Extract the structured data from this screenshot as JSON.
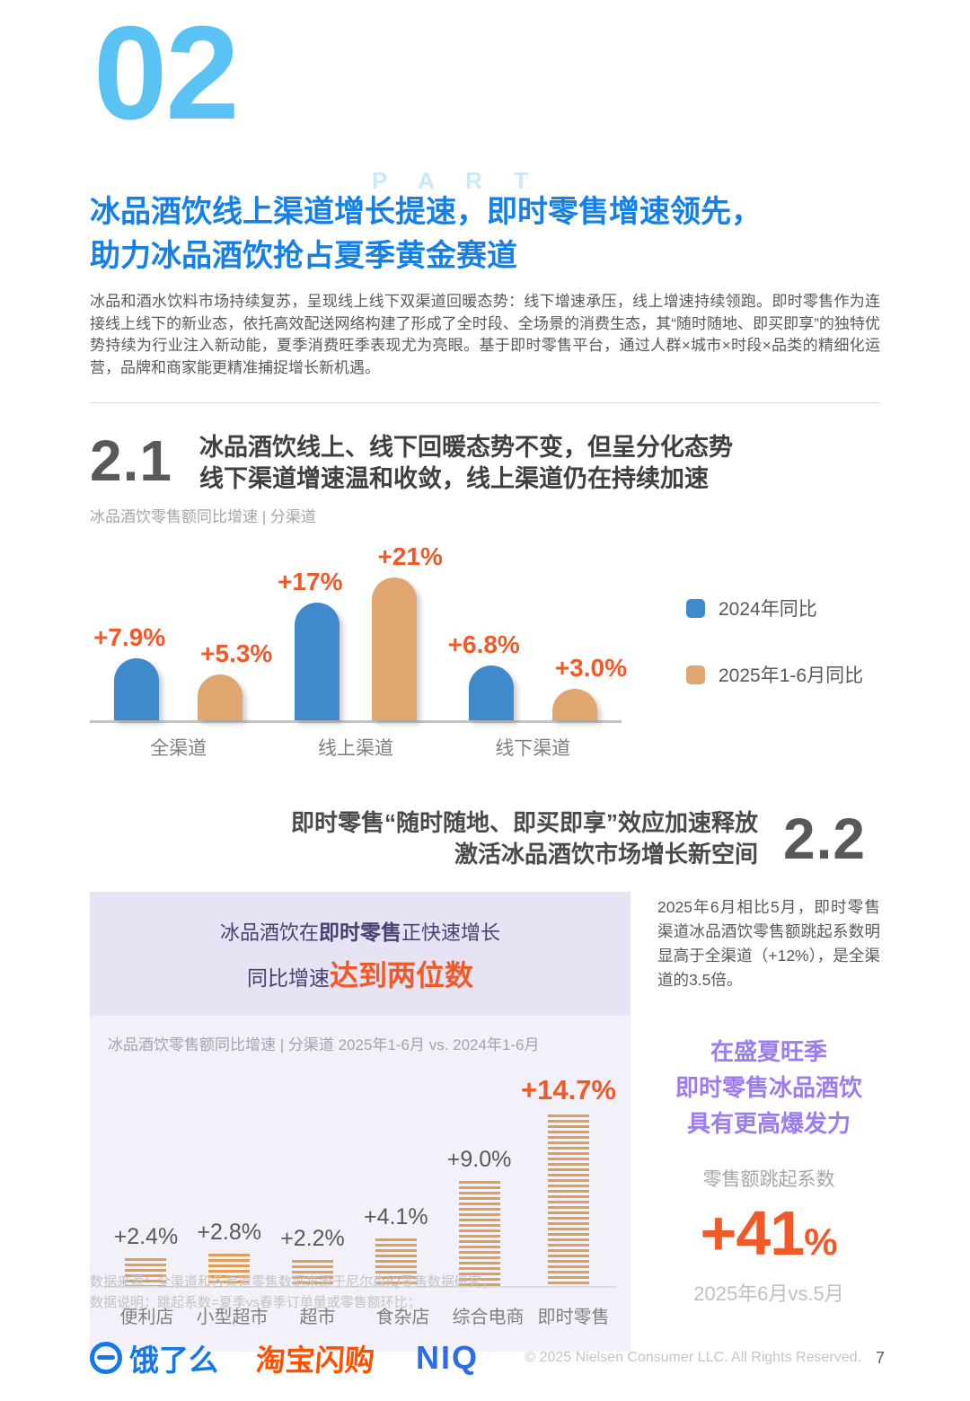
{
  "header": {
    "part_number": "02",
    "part_label": "P A R T",
    "title_line1": "冰品酒饮线上渠道增长提速，即时零售增速领先，",
    "title_line2": "助力冰品酒饮抢占夏季黄金赛道",
    "intro": "冰品和酒水饮料市场持续复苏，呈现线上线下双渠道回暖态势：线下增速承压，线上增速持续领跑。即时零售作为连接线上线下的新业态，依托高效配送网络构建了形成了全时段、全场景的消费生态，其“随时随地、即买即享”的独特优势持续为行业注入新动能，夏季消费旺季表现尤为亮眼。基于即时零售平台，通过人群×城市×时段×品类的精细化运营，品牌和商家能更精准捕捉增长新机遇。"
  },
  "section21": {
    "number": "2.1",
    "heading_line1": "冰品酒饮线上、线下回暖态势不变，但呈分化态势",
    "heading_line2": "线下渠道增速温和收敛，线上渠道仍在持续加速",
    "caption": "冰品酒饮零售额同比增速 | 分渠道"
  },
  "section22": {
    "number": "2.2",
    "heading_line1": "即时零售“随时随地、即买即享”效应加速释放",
    "heading_line2": "激活冰品酒饮市场增长新空间",
    "panel": {
      "title_pre": "冰品酒饮在",
      "title_bold": "即时零售",
      "title_post": "正快速增长",
      "title2_pre": "同比增速",
      "title2_highlight": "达到两位数",
      "caption": "冰品酒饮零售额同比增速 | 分渠道 2025年1-6月 vs. 2024年1-6月"
    },
    "right": {
      "paragraph": "2025年6月相比5月，即时零售渠道冰品酒饮零售额跳起系数明显高于全渠道（+12%），是全渠道的3.5倍。",
      "highlight_line1": "在盛夏旺季",
      "highlight_line2": "即时零售冰品酒饮",
      "highlight_line3": "具有更高爆发力",
      "metric_label": "零售额跳起系数",
      "metric_value": "+41",
      "metric_unit": "%",
      "metric_period": "2025年6月vs.5月"
    }
  },
  "chart_data": [
    {
      "type": "bar",
      "title": "冰品酒饮零售额同比增速 | 分渠道",
      "categories": [
        "全渠道",
        "线上渠道",
        "线下渠道"
      ],
      "series": [
        {
          "name": "2024年同比",
          "color": "#4189CD",
          "values": [
            7.9,
            17,
            6.8
          ],
          "labels": [
            "+7.9%",
            "+17%",
            "+6.8%"
          ]
        },
        {
          "name": "2025年1-6月同比",
          "color": "#DFA670",
          "values": [
            5.3,
            21,
            3.0
          ],
          "labels": [
            "+5.3%",
            "+21%",
            "+3.0%"
          ]
        }
      ],
      "ylim": [
        0,
        24
      ],
      "grid": false,
      "legend_position": "right",
      "label_color": "#F05A28"
    },
    {
      "type": "bar",
      "title": "冰品酒饮零售额同比增速 | 分渠道 2025年1-6月 vs. 2024年1-6月",
      "categories": [
        "便利店",
        "小型超市",
        "超市",
        "食杂店",
        "综合电商",
        "即时零售"
      ],
      "values": [
        2.4,
        2.8,
        2.2,
        4.1,
        9.0,
        14.7
      ],
      "labels": [
        "+2.4%",
        "+2.8%",
        "+2.2%",
        "+4.1%",
        "+9.0%",
        "+14.7%"
      ],
      "highlight_index": 5,
      "bar_style": "striped",
      "color": "#DE9E53",
      "ylim": [
        0,
        16
      ],
      "grid": false
    }
  ],
  "colors": {
    "title_blue": "#1580E8",
    "part_blue": "#5BC3F3",
    "part_label_blue": "#C9E9FB",
    "accent_orange": "#F05A28",
    "bar_blue": "#4189CD",
    "bar_tan": "#DFA670",
    "purple": "#9C7CEE",
    "panel_lavender": "#E6E3F4",
    "panel_bg": "#F2F1F9"
  },
  "footer": {
    "source_line1": "数据来源：全渠道和各渠道零售数据来源于尼尔森IQ零售数据研究；",
    "source_line2": "数据说明：跳起系数=夏季vs春季订单量或零售额环比；",
    "logo_ele": "饿了么",
    "logo_taobao": "淘宝闪购",
    "logo_niq": "NIQ",
    "copyright": "© 2025 Nielsen Consumer LLC. All Rights Reserved.",
    "page_number": "7"
  }
}
